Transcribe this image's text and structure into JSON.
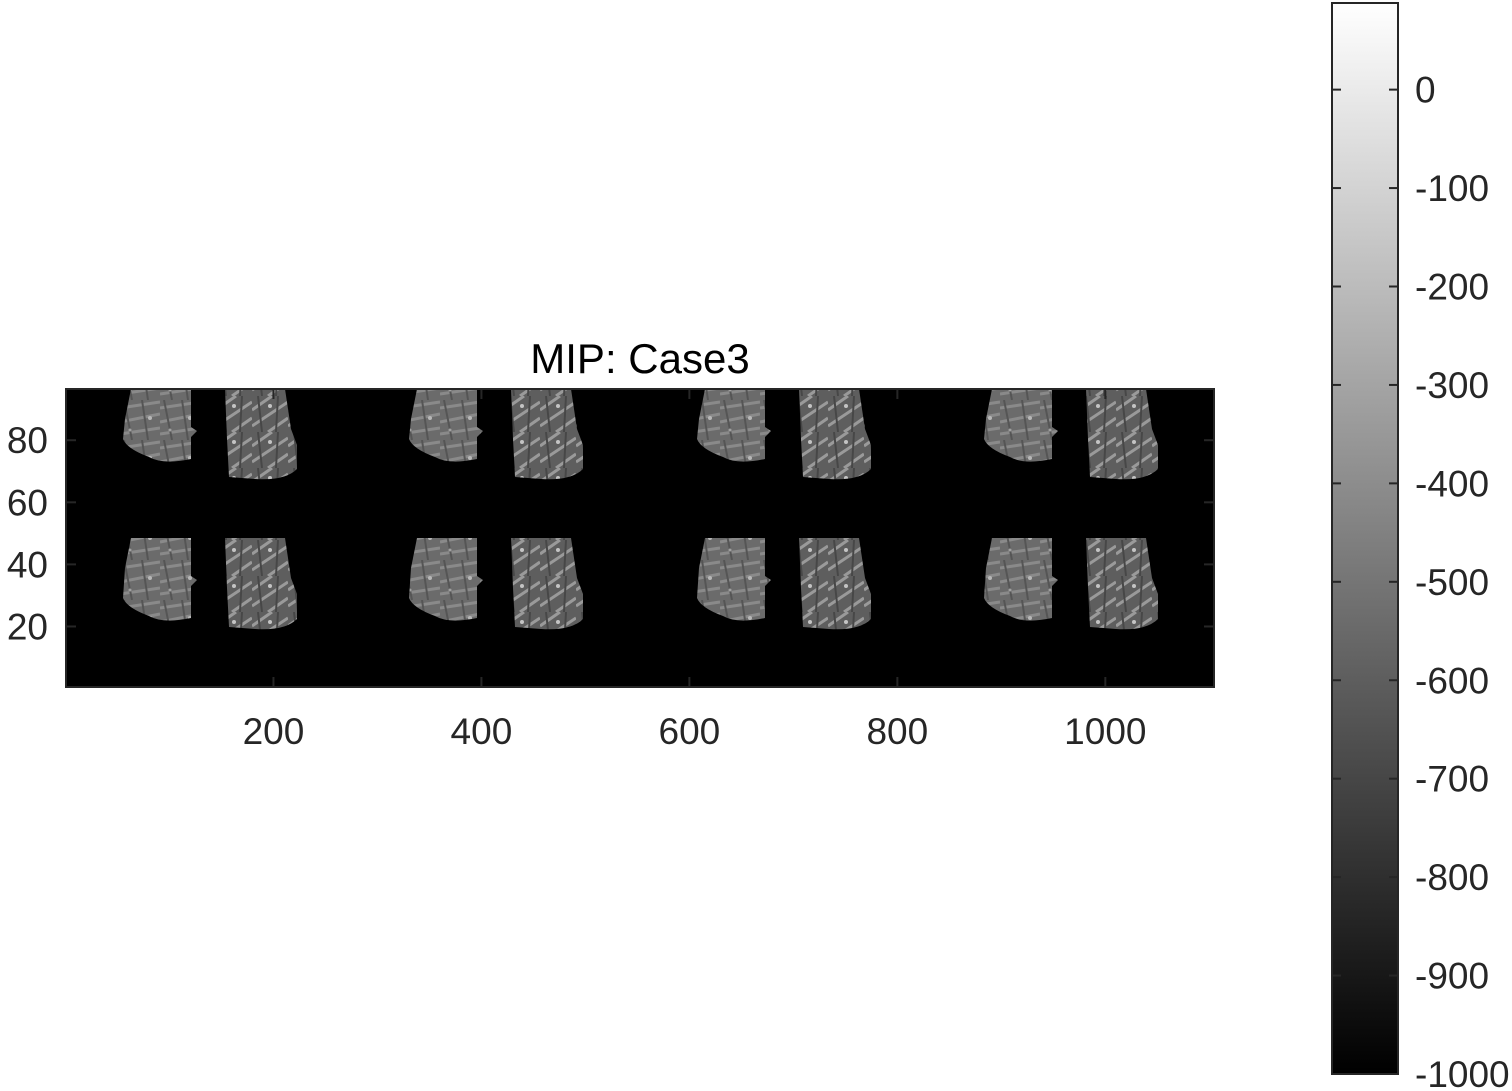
{
  "chart_data": {
    "type": "heatmap",
    "title": "MIP: Case3",
    "xlabel": "",
    "ylabel": "",
    "colormap": "gray",
    "background_color": "#000000",
    "xlim": [
      0.5,
      1104.5
    ],
    "ylim": [
      0.5,
      96.5
    ],
    "y_direction": "normal",
    "x_ticks": [
      200,
      400,
      600,
      800,
      1000
    ],
    "x_tick_labels": [
      "200",
      "400",
      "600",
      "800",
      "1000"
    ],
    "y_ticks": [
      20,
      40,
      60,
      80
    ],
    "y_tick_labels": [
      "20",
      "40",
      "60",
      "80"
    ],
    "grid": false,
    "colorbar": {
      "location": "right",
      "clim": [
        -1000,
        88
      ],
      "ticks": [
        0,
        -100,
        -200,
        -300,
        -400,
        -500,
        -600,
        -700,
        -800,
        -900,
        -1000
      ],
      "tick_labels": [
        "0",
        "-100",
        "-200",
        "-300",
        "-400",
        "-500",
        "-600",
        "-700",
        "-800",
        "-900",
        "-1000"
      ]
    },
    "tiles": {
      "layout": "2 rows x 4 columns of image slices, each slice showing a left and right tissue region",
      "rows": 2,
      "columns": 4
    }
  }
}
